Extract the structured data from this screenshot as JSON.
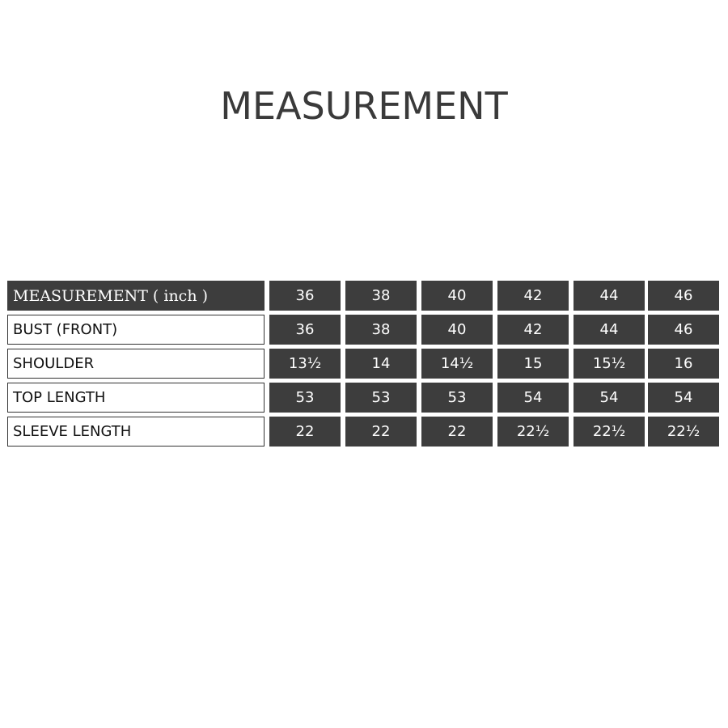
{
  "title": "MEASUREMENT",
  "table": {
    "header_label": "MEASUREMENT  ( inch )",
    "sizes": [
      "36",
      "38",
      "40",
      "42",
      "44",
      "46"
    ],
    "rows": [
      {
        "label": "BUST (FRONT)",
        "values": [
          "36",
          "38",
          "40",
          "42",
          "44",
          "46"
        ]
      },
      {
        "label": "SHOULDER",
        "values": [
          "13½",
          "14",
          "14½",
          "15",
          "15½",
          "16"
        ]
      },
      {
        "label": "TOP LENGTH",
        "values": [
          "53",
          "53",
          "53",
          "54",
          "54",
          "54"
        ]
      },
      {
        "label": "SLEEVE LENGTH",
        "values": [
          "22",
          "22",
          "22",
          "22½",
          "22½",
          "22½"
        ]
      }
    ]
  },
  "colors": {
    "cell_dark": "#3d3d3d",
    "text_light": "#ffffff"
  }
}
